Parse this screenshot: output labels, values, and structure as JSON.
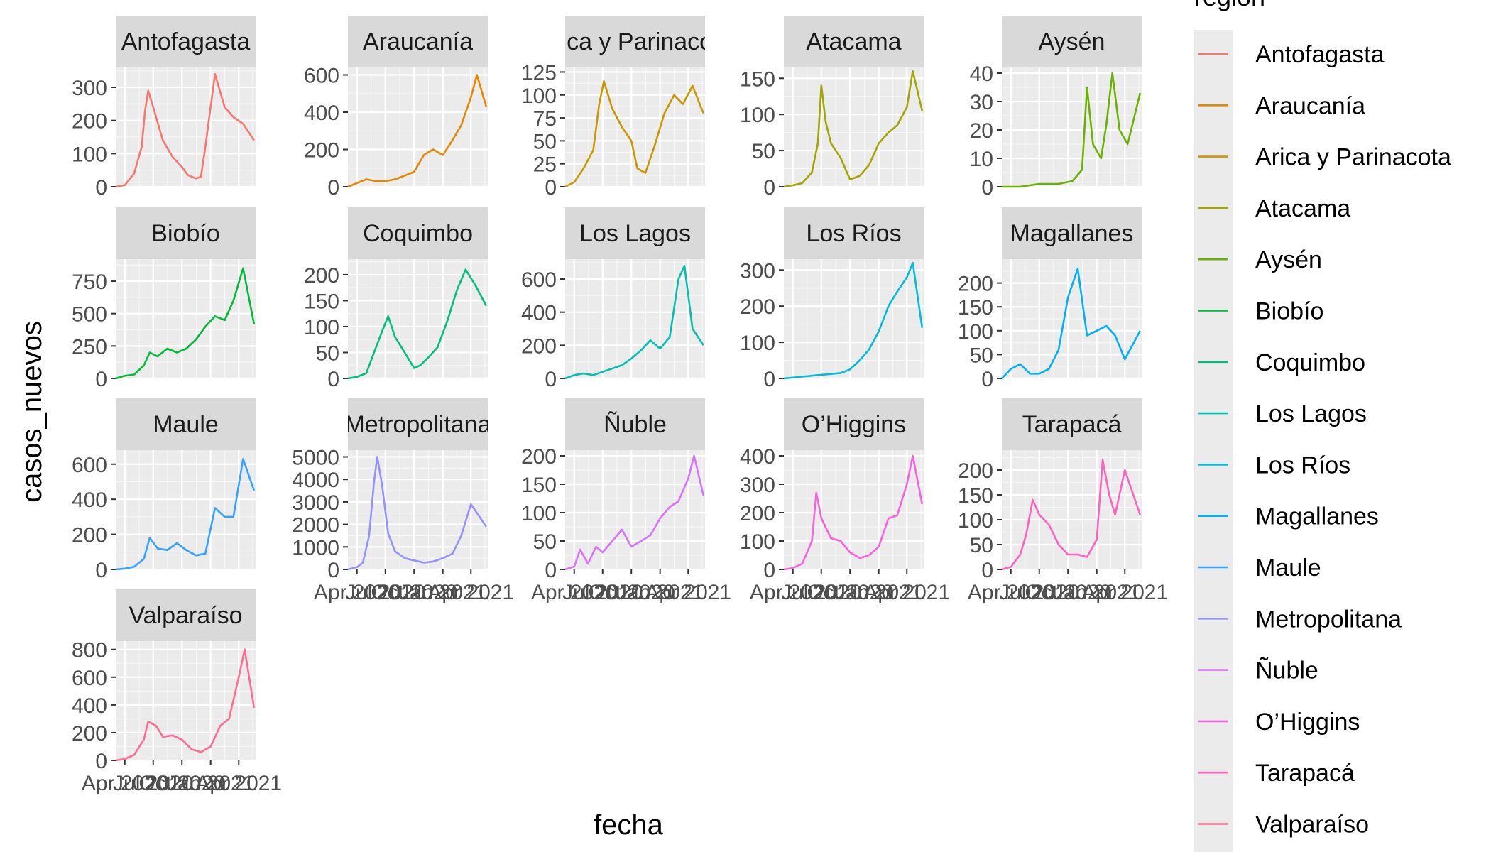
{
  "chart_data": {
    "type": "line",
    "xlabel": "fecha",
    "ylabel": "casos_nuevos",
    "legend_title": "region",
    "legend_position": "right",
    "grid": true,
    "x_tick_labels": [
      "Apr 2020",
      "Jul 2020",
      "Oct 2020",
      "Jan 2021",
      "Apr 2021"
    ],
    "x_ticks": [
      "2020-04-01",
      "2020-07-01",
      "2020-10-01",
      "2021-01-01",
      "2021-04-01"
    ],
    "x_range": [
      "2020-03-03",
      "2021-05-25"
    ],
    "panels": [
      {
        "name": "Antofagasta",
        "color": "#F8766D",
        "ylim": [
          0,
          360
        ],
        "y_ticks": [
          0,
          100,
          200,
          300
        ],
        "x": [
          "2020-03-03",
          "2020-04-01",
          "2020-05-01",
          "2020-05-25",
          "2020-06-05",
          "2020-06-15",
          "2020-07-01",
          "2020-08-01",
          "2020-09-01",
          "2020-10-01",
          "2020-10-20",
          "2020-11-15",
          "2020-12-01",
          "2020-12-15",
          "2021-01-15",
          "2021-02-15",
          "2021-03-15",
          "2021-04-15",
          "2021-05-20"
        ],
        "y": [
          0,
          5,
          40,
          120,
          230,
          290,
          240,
          140,
          90,
          60,
          35,
          25,
          30,
          120,
          340,
          240,
          210,
          190,
          140
        ]
      },
      {
        "name": "Araucanía",
        "color": "#E58700",
        "ylim": [
          0,
          640
        ],
        "y_ticks": [
          0,
          200,
          400,
          600
        ],
        "x": [
          "2020-03-03",
          "2020-04-01",
          "2020-05-01",
          "2020-06-01",
          "2020-07-01",
          "2020-08-01",
          "2020-09-01",
          "2020-10-01",
          "2020-11-01",
          "2020-12-01",
          "2021-01-01",
          "2021-02-01",
          "2021-03-01",
          "2021-04-01",
          "2021-04-20",
          "2021-05-20"
        ],
        "y": [
          0,
          20,
          40,
          30,
          30,
          40,
          60,
          80,
          170,
          200,
          170,
          250,
          330,
          480,
          600,
          430
        ]
      },
      {
        "name": "Arica y Parinacota",
        "color": "#C99800",
        "ylim": [
          0,
          130
        ],
        "y_ticks": [
          0,
          25,
          50,
          75,
          100,
          125
        ],
        "x": [
          "2020-03-03",
          "2020-04-01",
          "2020-05-01",
          "2020-06-01",
          "2020-06-20",
          "2020-07-05",
          "2020-08-01",
          "2020-09-01",
          "2020-10-01",
          "2020-10-20",
          "2020-11-15",
          "2020-12-15",
          "2021-01-15",
          "2021-02-15",
          "2021-03-15",
          "2021-04-15",
          "2021-05-20"
        ],
        "y": [
          0,
          5,
          20,
          40,
          90,
          115,
          85,
          65,
          50,
          20,
          15,
          45,
          80,
          100,
          90,
          110,
          80
        ]
      },
      {
        "name": "Atacama",
        "color": "#A3A500",
        "ylim": [
          0,
          165
        ],
        "y_ticks": [
          0,
          50,
          100,
          150
        ],
        "x": [
          "2020-03-03",
          "2020-04-01",
          "2020-05-01",
          "2020-06-01",
          "2020-06-20",
          "2020-07-01",
          "2020-07-15",
          "2020-08-01",
          "2020-09-01",
          "2020-10-01",
          "2020-11-01",
          "2020-12-01",
          "2021-01-01",
          "2021-02-01",
          "2021-03-01",
          "2021-04-01",
          "2021-04-20",
          "2021-05-20"
        ],
        "y": [
          0,
          2,
          5,
          20,
          60,
          140,
          90,
          60,
          40,
          10,
          15,
          30,
          60,
          75,
          85,
          110,
          160,
          105
        ]
      },
      {
        "name": "Aysén",
        "color": "#6BB100",
        "ylim": [
          0,
          42
        ],
        "y_ticks": [
          0,
          10,
          20,
          30,
          40
        ],
        "x": [
          "2020-03-03",
          "2020-05-01",
          "2020-07-01",
          "2020-09-01",
          "2020-10-15",
          "2020-11-15",
          "2020-12-01",
          "2020-12-20",
          "2021-01-15",
          "2021-02-01",
          "2021-02-20",
          "2021-03-15",
          "2021-04-10",
          "2021-05-20"
        ],
        "y": [
          0,
          0,
          1,
          1,
          2,
          6,
          35,
          15,
          10,
          22,
          40,
          20,
          15,
          33
        ]
      },
      {
        "name": "Biobío",
        "color": "#00BA38",
        "ylim": [
          0,
          920
        ],
        "y_ticks": [
          0,
          250,
          500,
          750
        ],
        "x": [
          "2020-03-03",
          "2020-04-01",
          "2020-05-01",
          "2020-06-01",
          "2020-06-20",
          "2020-07-15",
          "2020-08-15",
          "2020-09-15",
          "2020-10-15",
          "2020-11-15",
          "2020-12-15",
          "2021-01-15",
          "2021-02-15",
          "2021-03-15",
          "2021-04-15",
          "2021-05-20"
        ],
        "y": [
          0,
          20,
          30,
          100,
          200,
          170,
          230,
          200,
          230,
          300,
          400,
          480,
          450,
          600,
          850,
          420
        ]
      },
      {
        "name": "Coquimbo",
        "color": "#00BF7D",
        "ylim": [
          0,
          230
        ],
        "y_ticks": [
          0,
          50,
          100,
          150,
          200
        ],
        "x": [
          "2020-03-03",
          "2020-04-01",
          "2020-05-01",
          "2020-06-01",
          "2020-06-20",
          "2020-07-10",
          "2020-08-01",
          "2020-09-01",
          "2020-10-01",
          "2020-10-20",
          "2020-11-15",
          "2020-12-15",
          "2021-01-15",
          "2021-02-15",
          "2021-03-15",
          "2021-04-15",
          "2021-05-20"
        ],
        "y": [
          0,
          3,
          10,
          60,
          90,
          120,
          80,
          50,
          20,
          25,
          40,
          60,
          110,
          170,
          210,
          180,
          140
        ]
      },
      {
        "name": "Los Lagos",
        "color": "#00C0AF",
        "ylim": [
          0,
          720
        ],
        "y_ticks": [
          0,
          200,
          400,
          600
        ],
        "x": [
          "2020-03-03",
          "2020-04-01",
          "2020-05-01",
          "2020-06-01",
          "2020-07-01",
          "2020-08-01",
          "2020-09-01",
          "2020-10-01",
          "2020-11-01",
          "2020-12-01",
          "2021-01-01",
          "2021-02-01",
          "2021-03-01",
          "2021-03-20",
          "2021-04-15",
          "2021-05-20"
        ],
        "y": [
          0,
          20,
          30,
          20,
          40,
          60,
          80,
          120,
          170,
          230,
          180,
          250,
          600,
          680,
          300,
          200
        ]
      },
      {
        "name": "Los Ríos",
        "color": "#00BCD8",
        "ylim": [
          0,
          330
        ],
        "y_ticks": [
          0,
          100,
          200,
          300
        ],
        "x": [
          "2020-03-03",
          "2020-05-01",
          "2020-07-01",
          "2020-09-01",
          "2020-10-01",
          "2020-11-01",
          "2020-12-01",
          "2021-01-01",
          "2021-02-01",
          "2021-03-01",
          "2021-04-01",
          "2021-04-20",
          "2021-05-20"
        ],
        "y": [
          0,
          5,
          10,
          15,
          25,
          50,
          80,
          130,
          200,
          240,
          280,
          320,
          140
        ]
      },
      {
        "name": "Magallanes",
        "color": "#00B0F6",
        "ylim": [
          0,
          250
        ],
        "y_ticks": [
          0,
          50,
          100,
          150,
          200
        ],
        "x": [
          "2020-03-03",
          "2020-04-01",
          "2020-05-01",
          "2020-06-01",
          "2020-07-01",
          "2020-08-01",
          "2020-09-01",
          "2020-10-01",
          "2020-11-01",
          "2020-12-01",
          "2021-01-01",
          "2021-02-01",
          "2021-03-01",
          "2021-04-01",
          "2021-05-20"
        ],
        "y": [
          0,
          20,
          30,
          10,
          10,
          20,
          60,
          170,
          230,
          90,
          100,
          110,
          90,
          40,
          100
        ]
      },
      {
        "name": "Maule",
        "color": "#35A2FF",
        "ylim": [
          0,
          680
        ],
        "y_ticks": [
          0,
          200,
          400,
          600
        ],
        "x": [
          "2020-03-03",
          "2020-04-01",
          "2020-05-01",
          "2020-06-01",
          "2020-06-20",
          "2020-07-15",
          "2020-08-15",
          "2020-09-15",
          "2020-10-15",
          "2020-11-15",
          "2020-12-15",
          "2021-01-15",
          "2021-02-15",
          "2021-03-15",
          "2021-04-15",
          "2021-05-20"
        ],
        "y": [
          0,
          5,
          15,
          60,
          180,
          120,
          110,
          150,
          110,
          80,
          90,
          350,
          300,
          300,
          630,
          450
        ]
      },
      {
        "name": "Metropolitana",
        "color": "#9590FF",
        "ylim": [
          0,
          5300
        ],
        "y_ticks": [
          0,
          1000,
          2000,
          3000,
          4000,
          5000
        ],
        "x": [
          "2020-03-03",
          "2020-04-01",
          "2020-04-20",
          "2020-05-10",
          "2020-05-25",
          "2020-06-05",
          "2020-06-20",
          "2020-07-10",
          "2020-08-01",
          "2020-09-01",
          "2020-10-01",
          "2020-11-01",
          "2020-12-01",
          "2021-01-01",
          "2021-02-01",
          "2021-03-01",
          "2021-04-01",
          "2021-05-20"
        ],
        "y": [
          0,
          100,
          300,
          1500,
          3800,
          5000,
          3800,
          1600,
          800,
          500,
          400,
          300,
          350,
          500,
          700,
          1500,
          2900,
          1900
        ]
      },
      {
        "name": "Ñuble",
        "color": "#D575FE",
        "ylim": [
          0,
          210
        ],
        "y_ticks": [
          0,
          50,
          100,
          150,
          200
        ],
        "x": [
          "2020-03-03",
          "2020-04-01",
          "2020-04-20",
          "2020-05-15",
          "2020-06-10",
          "2020-07-01",
          "2020-08-01",
          "2020-09-01",
          "2020-10-01",
          "2020-11-01",
          "2020-12-01",
          "2021-01-01",
          "2021-02-01",
          "2021-03-01",
          "2021-04-01",
          "2021-04-20",
          "2021-05-20"
        ],
        "y": [
          0,
          5,
          35,
          10,
          40,
          30,
          50,
          70,
          40,
          50,
          60,
          90,
          110,
          120,
          160,
          200,
          130
        ]
      },
      {
        "name": "O’Higgins",
        "color": "#F962DD",
        "ylim": [
          0,
          420
        ],
        "y_ticks": [
          0,
          100,
          200,
          300,
          400
        ],
        "x": [
          "2020-03-03",
          "2020-04-01",
          "2020-05-01",
          "2020-06-01",
          "2020-06-15",
          "2020-07-01",
          "2020-08-01",
          "2020-09-01",
          "2020-10-01",
          "2020-11-01",
          "2020-12-01",
          "2021-01-01",
          "2021-02-01",
          "2021-03-01",
          "2021-04-01",
          "2021-04-20",
          "2021-05-20"
        ],
        "y": [
          0,
          5,
          20,
          100,
          270,
          180,
          110,
          100,
          60,
          40,
          50,
          80,
          180,
          190,
          300,
          400,
          230
        ]
      },
      {
        "name": "Tarapacá",
        "color": "#FF62BC",
        "ylim": [
          0,
          240
        ],
        "y_ticks": [
          0,
          50,
          100,
          150,
          200
        ],
        "x": [
          "2020-03-03",
          "2020-04-01",
          "2020-05-01",
          "2020-05-20",
          "2020-06-10",
          "2020-07-01",
          "2020-08-01",
          "2020-09-01",
          "2020-10-01",
          "2020-11-01",
          "2020-12-01",
          "2021-01-01",
          "2021-01-20",
          "2021-02-10",
          "2021-03-01",
          "2021-04-01",
          "2021-05-20"
        ],
        "y": [
          0,
          5,
          30,
          70,
          140,
          110,
          90,
          50,
          30,
          30,
          25,
          60,
          220,
          150,
          110,
          200,
          110
        ]
      },
      {
        "name": "Valparaíso",
        "color": "#FF6C91",
        "ylim": [
          0,
          860
        ],
        "y_ticks": [
          0,
          200,
          400,
          600,
          800
        ],
        "x": [
          "2020-03-03",
          "2020-04-01",
          "2020-05-01",
          "2020-06-01",
          "2020-06-15",
          "2020-07-10",
          "2020-08-01",
          "2020-09-01",
          "2020-10-01",
          "2020-11-01",
          "2020-12-01",
          "2021-01-01",
          "2021-02-01",
          "2021-03-01",
          "2021-04-01",
          "2021-04-20",
          "2021-05-20"
        ],
        "y": [
          0,
          10,
          40,
          150,
          280,
          250,
          170,
          180,
          150,
          80,
          60,
          100,
          250,
          300,
          600,
          800,
          380
        ]
      }
    ]
  }
}
